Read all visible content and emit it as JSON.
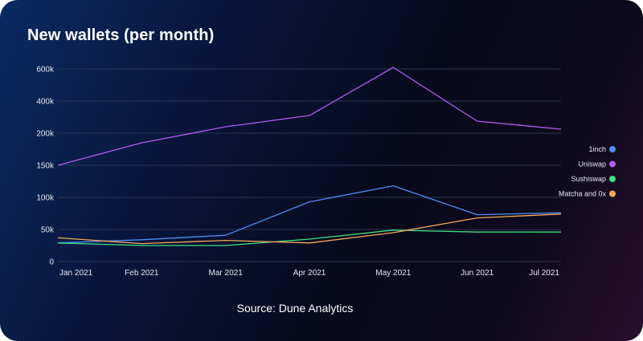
{
  "chart_data": {
    "type": "line",
    "title": "New wallets (per month)",
    "categories": [
      "Jan 2021",
      "Feb 2021",
      "Mar 2021",
      "Apr 2021",
      "May 2021",
      "Jun 2021",
      "Jul 2021"
    ],
    "y_ticks": [
      "0",
      "50k",
      "100k",
      "150k",
      "200k",
      "400k",
      "600k"
    ],
    "y_scale_note": "piecewise: 0–150k linear, 150k–600k compressed",
    "series": [
      {
        "name": "1inch",
        "color": "#4f8ef7",
        "values": [
          29000,
          34000,
          41000,
          93000,
          118000,
          73000,
          76000
        ]
      },
      {
        "name": "Uniswap",
        "color": "#b25bf0",
        "values": [
          150000,
          185000,
          240000,
          310000,
          610000,
          275000,
          225000
        ]
      },
      {
        "name": "Sushiswap",
        "color": "#3ee07f",
        "values": [
          29000,
          25000,
          25000,
          35000,
          49000,
          46000,
          46000
        ]
      },
      {
        "name": "Matcha and 0x",
        "color": "#f5a85a",
        "values": [
          37000,
          28000,
          33000,
          29000,
          45000,
          68000,
          74000
        ]
      }
    ],
    "legend_position": "right",
    "grid": true
  },
  "source_text": "Source: Dune Analytics"
}
